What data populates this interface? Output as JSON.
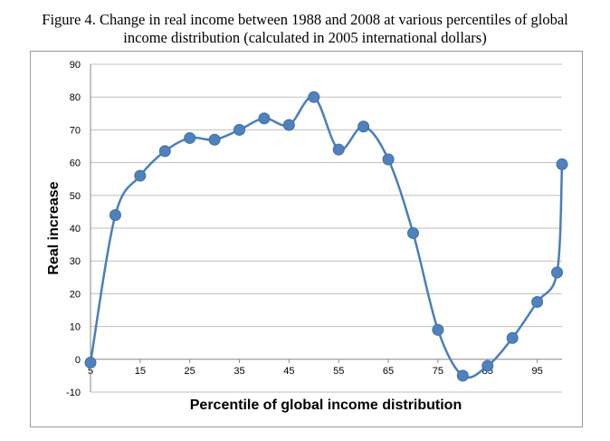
{
  "figure_title_line1": "Figure 4. Change in real income between 1988 and 2008 at various percentiles of global",
  "figure_title_line2": "income distribution (calculated in 2005 international dollars)",
  "chart_data": {
    "type": "line",
    "smooth": true,
    "markers": "circle",
    "line_color": "#4a7ebb",
    "marker_color": "#4f81bd",
    "grid": "horizontal",
    "legend": "none",
    "xlabel": "Percentile of global income distribution",
    "ylabel": "Real increase",
    "xlim": [
      5,
      100
    ],
    "ylim": [
      -10,
      90
    ],
    "xticks": [
      "5",
      "15",
      "25",
      "35",
      "45",
      "55",
      "65",
      "75",
      "85",
      "95"
    ],
    "yticks": [
      "-10",
      "0",
      "10",
      "20",
      "30",
      "40",
      "50",
      "60",
      "70",
      "80",
      "90"
    ],
    "series": [
      {
        "x": [
          5,
          10,
          15,
          20,
          25,
          30,
          35,
          40,
          45,
          50,
          55,
          60,
          65,
          70,
          75,
          80,
          85,
          90,
          95,
          99,
          100
        ],
        "values": [
          -1,
          44,
          56,
          63.5,
          67.5,
          67,
          70,
          73.5,
          71.5,
          80,
          64,
          71,
          61,
          38.5,
          9,
          -5,
          -2,
          6.5,
          17.5,
          26.5,
          59.5
        ]
      }
    ]
  }
}
